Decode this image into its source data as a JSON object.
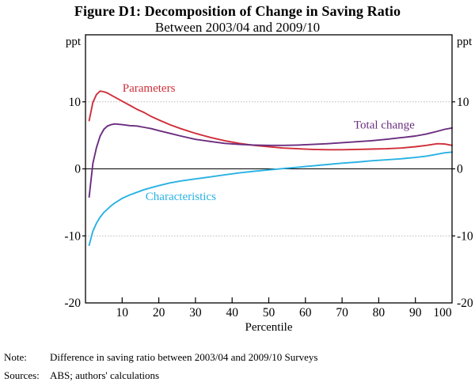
{
  "chart_data": {
    "type": "line",
    "title": "Figure D1: Decomposition of Change in Saving Ratio",
    "subtitle": "Between 2003/04 and 2009/10",
    "xlabel": "Percentile",
    "ylabel_left": "ppt",
    "ylabel_right": "ppt",
    "xlim": [
      0,
      100
    ],
    "ylim": [
      -20,
      20
    ],
    "x_ticks": [
      10,
      20,
      30,
      40,
      50,
      60,
      70,
      80,
      90,
      100
    ],
    "y_ticks": [
      10,
      0,
      -10,
      -20
    ],
    "gridlines": [
      10,
      -10
    ],
    "x": [
      1,
      2,
      3,
      4,
      5,
      6,
      7,
      8,
      10,
      12,
      14,
      16,
      18,
      20,
      23,
      26,
      30,
      34,
      38,
      42,
      46,
      50,
      54,
      58,
      62,
      66,
      70,
      74,
      78,
      82,
      86,
      90,
      93,
      96,
      98,
      100
    ],
    "series": [
      {
        "name": "Parameters",
        "color": "#cf2e39",
        "label": {
          "text": "Parameters",
          "x": 17.3,
          "y": 12.1
        },
        "values": [
          7.2,
          9.9,
          11.1,
          11.6,
          11.5,
          11.3,
          11.0,
          10.7,
          10.1,
          9.5,
          8.9,
          8.4,
          7.8,
          7.3,
          6.6,
          6.0,
          5.3,
          4.7,
          4.2,
          3.8,
          3.5,
          3.3,
          3.1,
          3.0,
          2.9,
          2.85,
          2.85,
          2.9,
          2.95,
          3.0,
          3.1,
          3.3,
          3.5,
          3.75,
          3.7,
          3.5
        ]
      },
      {
        "name": "Total change",
        "color": "#6a2d7f",
        "label": {
          "text": "Total change",
          "x": 81.5,
          "y": 6.6
        },
        "values": [
          -4.2,
          0.8,
          3.2,
          4.9,
          5.9,
          6.4,
          6.6,
          6.7,
          6.6,
          6.45,
          6.4,
          6.2,
          6.0,
          5.7,
          5.3,
          4.9,
          4.4,
          4.1,
          3.8,
          3.65,
          3.55,
          3.5,
          3.5,
          3.55,
          3.65,
          3.75,
          3.9,
          4.05,
          4.2,
          4.4,
          4.65,
          4.9,
          5.2,
          5.6,
          5.9,
          6.1
        ]
      },
      {
        "name": "Characteristics",
        "color": "#29b2e3",
        "label": {
          "text": "Characteristics",
          "x": 26.0,
          "y": -4.1
        },
        "values": [
          -11.4,
          -9.3,
          -8.1,
          -7.2,
          -6.5,
          -6.0,
          -5.5,
          -5.1,
          -4.4,
          -3.9,
          -3.5,
          -3.1,
          -2.8,
          -2.5,
          -2.1,
          -1.8,
          -1.5,
          -1.2,
          -0.9,
          -0.6,
          -0.35,
          -0.15,
          0.05,
          0.25,
          0.45,
          0.65,
          0.85,
          1.0,
          1.2,
          1.35,
          1.5,
          1.7,
          1.9,
          2.2,
          2.4,
          2.5
        ]
      }
    ]
  },
  "note": {
    "label": "Note:",
    "text": "Difference in saving ratio between 2003/04 and 2009/10 Surveys"
  },
  "sources": {
    "label": "Sources:",
    "text": "ABS; authors' calculations"
  }
}
